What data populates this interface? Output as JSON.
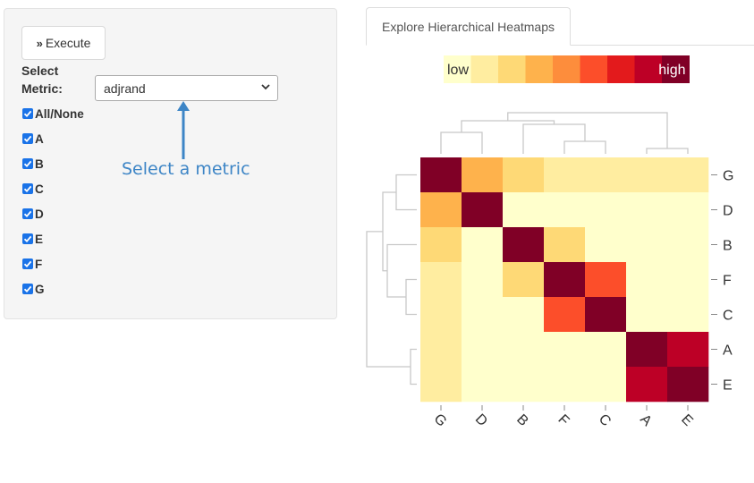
{
  "sidebar": {
    "execute_label": "Execute",
    "metric_label_line1": "Select",
    "metric_label_line2": "Metric:",
    "metric_value": "adjrand",
    "checkboxes": [
      {
        "label": "All/None",
        "checked": true
      },
      {
        "label": "A",
        "checked": true
      },
      {
        "label": "B",
        "checked": true
      },
      {
        "label": "C",
        "checked": true
      },
      {
        "label": "D",
        "checked": true
      },
      {
        "label": "E",
        "checked": true
      },
      {
        "label": "F",
        "checked": true
      },
      {
        "label": "G",
        "checked": true
      }
    ]
  },
  "annotation": {
    "text": "Select a metric",
    "color": "#3d85c6"
  },
  "tab": {
    "label": "Explore Hierarchical Heatmaps"
  },
  "colors": {
    "checkbox": "#1a73e8",
    "scale": [
      "#ffffcc",
      "#ffeda0",
      "#fed976",
      "#feb24c",
      "#fd8d3c",
      "#fc4e2a",
      "#e31a1c",
      "#bd0026",
      "#800026"
    ]
  },
  "legend": {
    "low": "low",
    "high": "high"
  },
  "chart_data": {
    "type": "heatmap",
    "rows": [
      "G",
      "D",
      "B",
      "F",
      "C",
      "A",
      "E"
    ],
    "cols": [
      "G",
      "D",
      "B",
      "F",
      "C",
      "A",
      "E"
    ],
    "values": [
      [
        1.0,
        0.42,
        0.22,
        0.18,
        0.07,
        0.08,
        0.08
      ],
      [
        0.42,
        1.0,
        0.04,
        0.03,
        0.06,
        0.03,
        0.03
      ],
      [
        0.22,
        0.04,
        1.0,
        0.2,
        0.03,
        0.03,
        0.03
      ],
      [
        0.18,
        0.03,
        0.2,
        1.0,
        0.65,
        0.02,
        0.02
      ],
      [
        0.07,
        0.06,
        0.03,
        0.65,
        1.0,
        0.02,
        0.02
      ],
      [
        0.08,
        0.03,
        0.03,
        0.02,
        0.02,
        1.0,
        0.88
      ],
      [
        0.08,
        0.03,
        0.03,
        0.02,
        0.02,
        0.88,
        1.0
      ]
    ],
    "range": [
      0,
      1
    ],
    "dendrogram": "both"
  }
}
